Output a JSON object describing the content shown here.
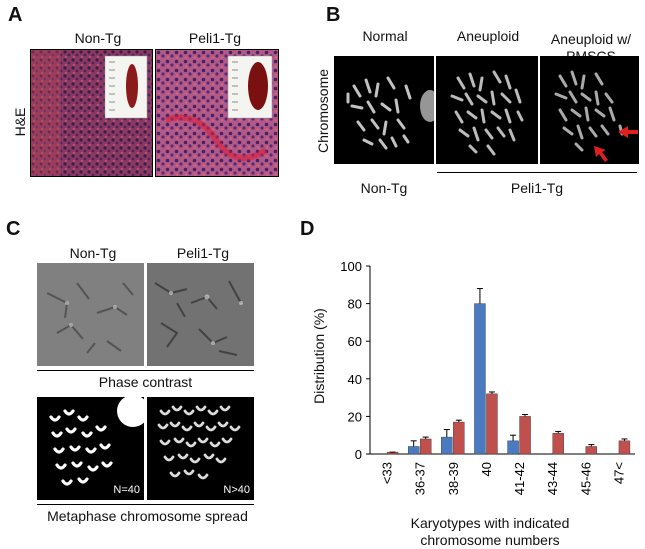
{
  "panels": {
    "A": {
      "label": "A",
      "row_label": "H&E",
      "columns": [
        "Non-Tg",
        "Peli1-Tg"
      ]
    },
    "B": {
      "label": "B",
      "row_label": "Chromosome",
      "columns": [
        "Normal",
        "Aneuploid",
        "Aneuploid w/\nPMSCS"
      ],
      "group_left": "Non-Tg",
      "group_right": "Peli1-Tg"
    },
    "C": {
      "label": "C",
      "columns": [
        "Non-Tg",
        "Peli1-Tg"
      ],
      "phase_caption": "Phase contrast",
      "spread_caption": "Metaphase chromosome spread",
      "n_left": "N=40",
      "n_right": "N>40"
    },
    "D": {
      "label": "D"
    }
  },
  "chart_data": {
    "type": "bar",
    "categories": [
      "<33",
      "36-37",
      "38-39",
      "40",
      "41-42",
      "43-44",
      "45-46",
      "47<"
    ],
    "series": [
      {
        "values": [
          0,
          4,
          9,
          80,
          7,
          0,
          0,
          0
        ],
        "errors": [
          0,
          3,
          4,
          8,
          3,
          0,
          0,
          0
        ],
        "color": "#4a7ac0"
      },
      {
        "values": [
          1,
          8,
          17,
          32,
          20,
          11,
          4,
          7
        ],
        "errors": [
          0,
          1,
          1,
          1,
          1,
          1,
          1,
          1
        ],
        "color": "#c0504d"
      }
    ],
    "ylabel": "Distribution (%)",
    "xlabel": "Karyotypes with indicated\nchromosome numbers",
    "ylim": [
      0,
      100
    ],
    "yticks": [
      0,
      20,
      40,
      60,
      80,
      100
    ]
  }
}
